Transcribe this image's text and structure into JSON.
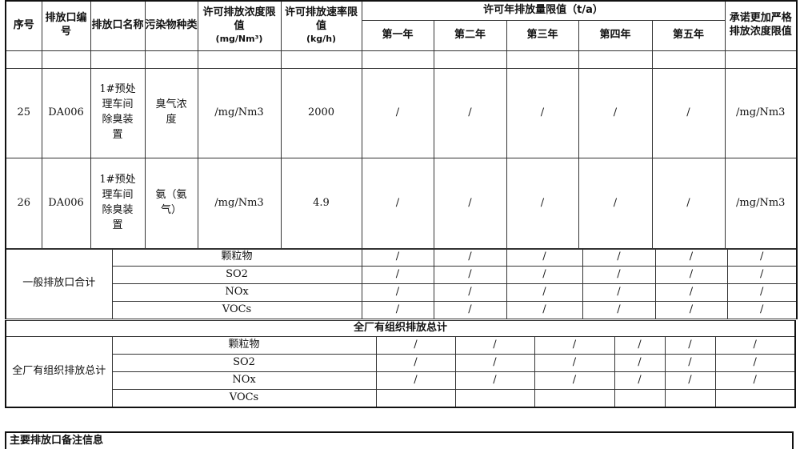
{
  "header": {
    "seq": "序号",
    "outlet_code": "排放口编号",
    "outlet_name": "排放口名称",
    "pollutant": "污染物种类",
    "conc_limit": "许可排放浓度限值",
    "conc_unit": "(mg/Nm³)",
    "rate_limit": "许可排放速率限值",
    "rate_unit": "(kg/h)",
    "annual_limit": "许可年排放量限值（t/a）",
    "years": [
      "第一年",
      "第二年",
      "第三年",
      "第四年",
      "第五年"
    ],
    "stricter": "承诺更加严格排放浓度限值"
  },
  "rows": [
    {
      "seq": "25",
      "code": "DA006",
      "name": "1#预处理车间除臭装置",
      "pollutant": "臭气浓度",
      "conc": "/mg/Nm3",
      "rate": "2000",
      "years": [
        "/",
        "/",
        "/",
        "/",
        "/"
      ],
      "stricter": "/mg/Nm3"
    },
    {
      "seq": "26",
      "code": "DA006",
      "name": "1#预处理车间除臭装置",
      "pollutant": "氨（氨气）",
      "conc": "/mg/Nm3",
      "rate": "4.9",
      "years": [
        "/",
        "/",
        "/",
        "/",
        "/"
      ],
      "stricter": "/mg/Nm3"
    }
  ],
  "general_total": {
    "label": "一般排放口合计",
    "items": [
      {
        "name": "颗粒物",
        "values": [
          "/",
          "/",
          "/",
          "/",
          "/",
          "/"
        ]
      },
      {
        "name": "SO2",
        "values": [
          "/",
          "/",
          "/",
          "/",
          "/",
          "/"
        ]
      },
      {
        "name": "NOx",
        "values": [
          "/",
          "/",
          "/",
          "/",
          "/",
          "/"
        ]
      },
      {
        "name": "VOCs",
        "values": [
          "/",
          "/",
          "/",
          "/",
          "/",
          "/"
        ]
      }
    ]
  },
  "plant_total_title": "全厂有组织排放总计",
  "plant_total": {
    "label": "全厂有组织排放总计",
    "items": [
      {
        "name": "颗粒物",
        "values": [
          "/",
          "/",
          "/",
          "/",
          "/",
          "/"
        ]
      },
      {
        "name": "SO2",
        "values": [
          "/",
          "/",
          "/",
          "/",
          "/",
          "/"
        ]
      },
      {
        "name": "NOx",
        "values": [
          "/",
          "/",
          "/",
          "/",
          "/",
          "/"
        ]
      },
      {
        "name": "VOCs",
        "values": [
          "",
          "",
          "",
          "",
          "",
          ""
        ]
      }
    ]
  },
  "remarks_title": "主要排放口备注信息"
}
